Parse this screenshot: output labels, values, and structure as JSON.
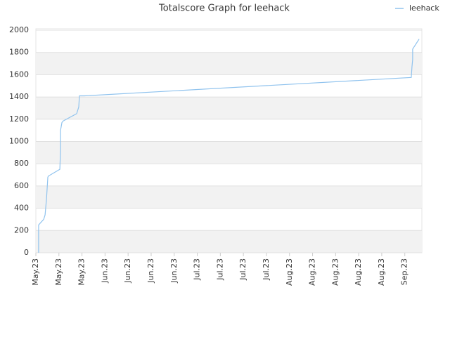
{
  "chart_data": {
    "type": "line",
    "title": "Totalscore Graph for leehack",
    "xlim": [
      0,
      16.74
    ],
    "xticks": [
      {
        "value": 0,
        "label": "May.23"
      },
      {
        "value": 1,
        "label": "May.23"
      },
      {
        "value": 2,
        "label": "May.23"
      },
      {
        "value": 3,
        "label": "Jun.23"
      },
      {
        "value": 4,
        "label": "Jun.23"
      },
      {
        "value": 5,
        "label": "Jun.23"
      },
      {
        "value": 6,
        "label": "Jun.23"
      },
      {
        "value": 7,
        "label": "Jul.23"
      },
      {
        "value": 8,
        "label": "Jul.23"
      },
      {
        "value": 9,
        "label": "Jul.23"
      },
      {
        "value": 10,
        "label": "Jul.23"
      },
      {
        "value": 11,
        "label": "Aug.23"
      },
      {
        "value": 12,
        "label": "Aug.23"
      },
      {
        "value": 13,
        "label": "Aug.23"
      },
      {
        "value": 14,
        "label": "Aug.23"
      },
      {
        "value": 15,
        "label": "Aug.23"
      },
      {
        "value": 16,
        "label": "Sep.23"
      }
    ],
    "ylim": [
      0,
      2000
    ],
    "yticks": [
      0,
      200,
      400,
      600,
      800,
      1000,
      1200,
      1400,
      1600,
      1800,
      2000
    ],
    "grid": true,
    "legend": "top-right",
    "series": [
      {
        "name": "leehack",
        "color": "#90c3ee",
        "x": [
          0.12,
          0.12,
          0.34,
          0.4,
          0.46,
          0.52,
          0.55,
          1.04,
          1.07,
          1.07,
          1.13,
          1.19,
          1.77,
          1.86,
          1.89,
          2.1,
          16.28,
          16.31,
          16.34,
          16.34,
          16.62
        ],
        "values": [
          0,
          250,
          300,
          340,
          480,
          680,
          690,
          750,
          920,
          1100,
          1170,
          1185,
          1250,
          1310,
          1410,
          1410,
          1575,
          1670,
          1735,
          1830,
          1920
        ]
      }
    ]
  }
}
